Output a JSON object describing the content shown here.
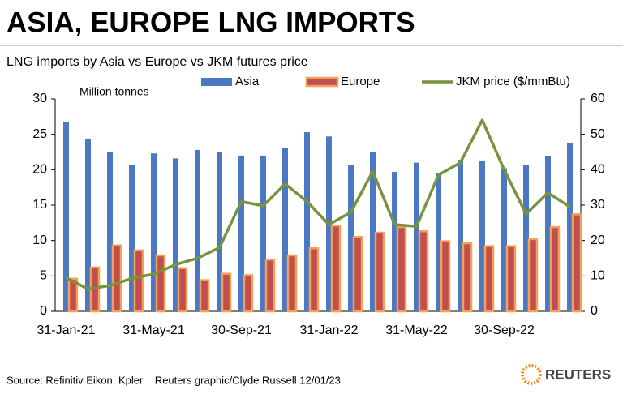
{
  "chart_data": {
    "type": "bar_line",
    "title": "ASIA, EUROPE LNG IMPORTS",
    "subtitle": "LNG imports by Asia vs Europe vs JKM futures price",
    "y_label": "Million tonnes",
    "categories": [
      "31-Jan-21",
      null,
      null,
      null,
      "31-May-21",
      null,
      null,
      null,
      "30-Sep-21",
      null,
      null,
      null,
      "31-Jan-22",
      null,
      null,
      null,
      "31-May-22",
      null,
      null,
      null,
      "30-Sep-22",
      null,
      null,
      null
    ],
    "series": [
      {
        "name": "Asia",
        "color": "#4a78c2",
        "type": "bar",
        "axis": "y",
        "values": [
          26.8,
          24.3,
          22.5,
          20.7,
          22.3,
          21.6,
          22.8,
          22.5,
          22.0,
          22.0,
          23.1,
          25.3,
          24.7,
          20.7,
          22.5,
          19.7,
          21.0,
          19.5,
          21.4,
          21.2,
          20.2,
          20.7,
          21.9,
          23.8
        ]
      },
      {
        "name": "Europe",
        "color": "#c0504d",
        "type": "bar",
        "axis": "y",
        "values": [
          4.6,
          6.2,
          9.3,
          8.6,
          7.9,
          6.1,
          4.4,
          5.3,
          5.1,
          7.3,
          7.9,
          8.9,
          12.1,
          10.5,
          11.1,
          11.9,
          11.3,
          9.9,
          9.6,
          9.2,
          9.2,
          10.2,
          11.9,
          13.7
        ]
      },
      {
        "name": "JKM price ($/mmBtu)",
        "color": "#77933c",
        "type": "line",
        "axis": "y2",
        "values": [
          9.5,
          6.3,
          7.3,
          9.3,
          10.5,
          13.2,
          15,
          18,
          31,
          29.8,
          36,
          31,
          24.5,
          28,
          39.5,
          24.5,
          24,
          38.5,
          42,
          54,
          40,
          27.5,
          33.5,
          29.5
        ]
      }
    ],
    "ylim": [
      0,
      30
    ],
    "yticks": [
      0,
      5,
      10,
      15,
      20,
      25,
      30
    ],
    "y2lim": [
      0,
      60
    ],
    "y2ticks": [
      0,
      10,
      20,
      30,
      40,
      50,
      60
    ],
    "source": "Source: Refinitiv Eikon, Kpler    Reuters graphic/Clyde Russell 12/01/23",
    "brand": "REUTERS"
  }
}
